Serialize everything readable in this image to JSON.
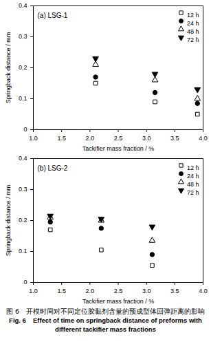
{
  "chart_data": [
    {
      "type": "scatter",
      "title": "(a) LSG-1",
      "x_label": "Tackifier mass fraction / %",
      "y_label": "Springback distance / mm",
      "x": [
        2.1,
        3.15,
        3.9
      ],
      "series": [
        {
          "name": "12 h",
          "color": "#000000",
          "marker": "square-open",
          "values": [
            0.15,
            0.09,
            0.05
          ]
        },
        {
          "name": "24 h",
          "color": "#000000",
          "marker": "circle",
          "values": [
            0.17,
            0.12,
            0.085
          ]
        },
        {
          "name": "48 h",
          "color": "#000000",
          "marker": "triangle-open",
          "values": [
            0.21,
            0.16,
            0.1
          ]
        },
        {
          "name": "72 h",
          "color": "#000000",
          "marker": "triangle-down",
          "values": [
            0.23,
            0.18,
            0.13
          ]
        }
      ],
      "xlim": [
        1.0,
        4.0
      ],
      "xticks": [
        {
          "value": 1,
          "label": "1.0"
        },
        {
          "value": 1.5,
          "label": "1.5"
        },
        {
          "value": 2,
          "label": "2.0"
        },
        {
          "value": 2.5,
          "label": "2.5"
        },
        {
          "value": 3,
          "label": "3.0"
        },
        {
          "value": 3.5,
          "label": "3.5"
        },
        {
          "value": 4,
          "label": "4.0"
        }
      ],
      "ylim": [
        0,
        0.4
      ],
      "yticks": [
        0,
        0.1,
        0.2,
        0.3,
        0.4
      ],
      "legend": "top-right",
      "grid": false
    },
    {
      "type": "scatter",
      "title": "(b) LSG-2",
      "x_label": "Tackifier mass fraction / %",
      "y_label": "Springback distance / mm",
      "x": [
        1.3,
        2.2,
        3.1
      ],
      "series": [
        {
          "name": "12 h",
          "color": "#000000",
          "marker": "square-open",
          "values": [
            0.17,
            0.105,
            0.055
          ]
        },
        {
          "name": "24 h",
          "color": "#000000",
          "marker": "circle",
          "values": [
            0.195,
            0.175,
            0.09
          ]
        },
        {
          "name": "48 h",
          "color": "#000000",
          "marker": "triangle-open",
          "values": [
            0.21,
            0.2,
            0.135
          ]
        },
        {
          "name": "72 h",
          "color": "#000000",
          "marker": "triangle-down",
          "values": [
            0.215,
            0.205,
            0.18
          ]
        }
      ],
      "xlim": [
        1.0,
        4.0
      ],
      "xticks": [
        {
          "value": 1,
          "label": "1.0"
        },
        {
          "value": 1.5,
          "label": "1.5"
        },
        {
          "value": 2,
          "label": "2.0"
        },
        {
          "value": 2.5,
          "label": "2.5"
        },
        {
          "value": 3,
          "label": "3.0"
        },
        {
          "value": 3.5,
          "label": "3.5"
        },
        {
          "value": 4,
          "label": "4.0"
        }
      ],
      "ylim": [
        0,
        0.4
      ],
      "yticks": [
        0,
        0.1,
        0.2,
        0.3,
        0.4
      ],
      "legend": "top-right",
      "grid": false
    }
  ],
  "caption": {
    "zh": "图 6　开模时间对不同定位胶黏剂含量的预成型体回弹距离的影响",
    "en": "Fig. 6　Effect of time on springback distance of preforms with different tackifier mass fractions"
  }
}
